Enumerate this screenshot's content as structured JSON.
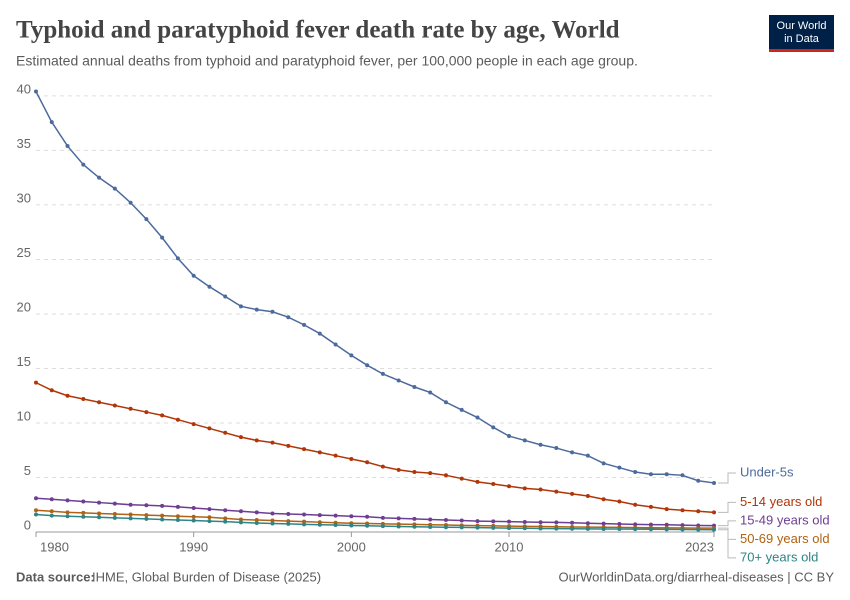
{
  "chart_data": {
    "type": "line",
    "title": "Typhoid and paratyphoid fever death rate by age, World",
    "subtitle": "Estimated annual deaths from typhoid and paratyphoid fever, per 100,000 people in each age group.",
    "x": [
      1980,
      1981,
      1982,
      1983,
      1984,
      1985,
      1986,
      1987,
      1988,
      1989,
      1990,
      1991,
      1992,
      1993,
      1994,
      1995,
      1996,
      1997,
      1998,
      1999,
      2000,
      2001,
      2002,
      2003,
      2004,
      2005,
      2006,
      2007,
      2008,
      2009,
      2010,
      2011,
      2012,
      2013,
      2014,
      2015,
      2016,
      2017,
      2018,
      2019,
      2020,
      2021,
      2022,
      2023
    ],
    "xlim": [
      1980,
      2023
    ],
    "xticks": [
      1980,
      1990,
      2000,
      2010,
      2023
    ],
    "ylim": [
      0,
      41
    ],
    "yticks": [
      0,
      5,
      10,
      15,
      20,
      25,
      30,
      35,
      40
    ],
    "grid": true,
    "series": [
      {
        "name": "Under-5s",
        "color": "#4c6a9c",
        "values": [
          40.4,
          37.6,
          35.4,
          33.7,
          32.5,
          31.5,
          30.2,
          28.7,
          27.0,
          25.1,
          23.5,
          22.5,
          21.6,
          20.7,
          20.4,
          20.2,
          19.7,
          19.0,
          18.2,
          17.2,
          16.2,
          15.3,
          14.5,
          13.9,
          13.3,
          12.8,
          11.9,
          11.2,
          10.5,
          9.6,
          8.8,
          8.4,
          8.0,
          7.7,
          7.3,
          7.0,
          6.3,
          5.9,
          5.5,
          5.3,
          5.3,
          5.2,
          4.7,
          4.5
        ]
      },
      {
        "name": "5-14 years old",
        "color": "#b13507",
        "values": [
          13.7,
          13.0,
          12.5,
          12.2,
          11.9,
          11.6,
          11.3,
          11.0,
          10.7,
          10.3,
          9.9,
          9.5,
          9.1,
          8.7,
          8.4,
          8.2,
          7.9,
          7.6,
          7.3,
          7.0,
          6.7,
          6.4,
          6.0,
          5.7,
          5.5,
          5.4,
          5.2,
          4.9,
          4.6,
          4.4,
          4.2,
          4.0,
          3.9,
          3.7,
          3.5,
          3.3,
          3.0,
          2.8,
          2.5,
          2.3,
          2.1,
          2.0,
          1.9,
          1.8
        ]
      },
      {
        "name": "15-49 years old",
        "color": "#6d3e91",
        "values": [
          3.1,
          3.0,
          2.9,
          2.8,
          2.7,
          2.6,
          2.5,
          2.45,
          2.4,
          2.3,
          2.2,
          2.1,
          2.0,
          1.9,
          1.8,
          1.7,
          1.65,
          1.6,
          1.55,
          1.5,
          1.45,
          1.4,
          1.3,
          1.25,
          1.2,
          1.15,
          1.1,
          1.05,
          1.0,
          0.98,
          0.95,
          0.92,
          0.9,
          0.88,
          0.85,
          0.8,
          0.77,
          0.73,
          0.7,
          0.68,
          0.66,
          0.63,
          0.6,
          0.58
        ]
      },
      {
        "name": "50-69 years old",
        "color": "#b16214",
        "values": [
          2.0,
          1.9,
          1.8,
          1.75,
          1.7,
          1.65,
          1.6,
          1.55,
          1.5,
          1.45,
          1.4,
          1.35,
          1.25,
          1.15,
          1.1,
          1.05,
          1.0,
          0.95,
          0.9,
          0.85,
          0.8,
          0.78,
          0.75,
          0.72,
          0.7,
          0.67,
          0.64,
          0.61,
          0.58,
          0.56,
          0.54,
          0.52,
          0.5,
          0.48,
          0.46,
          0.45,
          0.43,
          0.42,
          0.4,
          0.39,
          0.38,
          0.37,
          0.36,
          0.35
        ]
      },
      {
        "name": "70+ years old",
        "color": "#2d8587",
        "values": [
          1.6,
          1.5,
          1.45,
          1.4,
          1.35,
          1.3,
          1.25,
          1.2,
          1.15,
          1.1,
          1.05,
          1.0,
          0.95,
          0.88,
          0.82,
          0.78,
          0.74,
          0.7,
          0.67,
          0.64,
          0.6,
          0.57,
          0.54,
          0.51,
          0.48,
          0.46,
          0.44,
          0.42,
          0.4,
          0.38,
          0.36,
          0.34,
          0.32,
          0.31,
          0.3,
          0.29,
          0.28,
          0.27,
          0.26,
          0.25,
          0.24,
          0.23,
          0.22,
          0.21
        ]
      }
    ]
  },
  "logo": [
    "Our World",
    "in Data"
  ],
  "footer": {
    "source_label": "Data source:",
    "source_text": "IHME, Global Burden of Disease (2025)",
    "url": "OurWorldinData.org/diarrheal-diseases | CC BY"
  }
}
